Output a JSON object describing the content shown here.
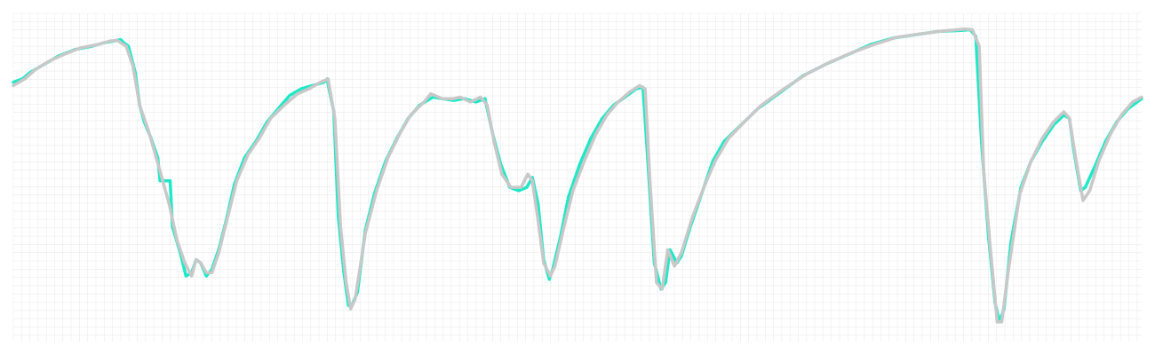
{
  "chart_data": {
    "type": "line",
    "title": "",
    "xlabel": "",
    "ylabel": "",
    "grid": true,
    "legend": "none",
    "xlim": [
      0,
      1
    ],
    "ylim": [
      0,
      1
    ],
    "colors": {
      "grid": "#ececec",
      "background": "#ffffff"
    },
    "series": [
      {
        "color": "#1de9c8",
        "points": [
          [
            0.0,
            0.79
          ],
          [
            0.008,
            0.8
          ],
          [
            0.015,
            0.82
          ],
          [
            0.03,
            0.85
          ],
          [
            0.04,
            0.87
          ],
          [
            0.055,
            0.89
          ],
          [
            0.07,
            0.9
          ],
          [
            0.08,
            0.91
          ],
          [
            0.088,
            0.915
          ],
          [
            0.095,
            0.92
          ],
          [
            0.098,
            0.91
          ],
          [
            0.102,
            0.9
          ],
          [
            0.108,
            0.82
          ],
          [
            0.112,
            0.72
          ],
          [
            0.116,
            0.67
          ],
          [
            0.122,
            0.62
          ],
          [
            0.128,
            0.56
          ],
          [
            0.13,
            0.49
          ],
          [
            0.139,
            0.49
          ],
          [
            0.141,
            0.35
          ],
          [
            0.148,
            0.27
          ],
          [
            0.153,
            0.2
          ],
          [
            0.158,
            0.21
          ],
          [
            0.162,
            0.25
          ],
          [
            0.166,
            0.24
          ],
          [
            0.171,
            0.2
          ],
          [
            0.176,
            0.22
          ],
          [
            0.182,
            0.28
          ],
          [
            0.188,
            0.36
          ],
          [
            0.196,
            0.48
          ],
          [
            0.205,
            0.56
          ],
          [
            0.215,
            0.61
          ],
          [
            0.225,
            0.67
          ],
          [
            0.235,
            0.71
          ],
          [
            0.245,
            0.75
          ],
          [
            0.255,
            0.77
          ],
          [
            0.265,
            0.78
          ],
          [
            0.275,
            0.79
          ],
          [
            0.278,
            0.8
          ],
          [
            0.284,
            0.7
          ],
          [
            0.288,
            0.38
          ],
          [
            0.293,
            0.21
          ],
          [
            0.297,
            0.11
          ],
          [
            0.3,
            0.11
          ],
          [
            0.305,
            0.15
          ],
          [
            0.312,
            0.34
          ],
          [
            0.32,
            0.45
          ],
          [
            0.33,
            0.55
          ],
          [
            0.34,
            0.62
          ],
          [
            0.35,
            0.68
          ],
          [
            0.36,
            0.72
          ],
          [
            0.372,
            0.745
          ],
          [
            0.38,
            0.74
          ],
          [
            0.39,
            0.735
          ],
          [
            0.4,
            0.74
          ],
          [
            0.41,
            0.73
          ],
          [
            0.418,
            0.74
          ],
          [
            0.425,
            0.63
          ],
          [
            0.432,
            0.54
          ],
          [
            0.44,
            0.47
          ],
          [
            0.448,
            0.46
          ],
          [
            0.455,
            0.47
          ],
          [
            0.46,
            0.5
          ],
          [
            0.465,
            0.42
          ],
          [
            0.47,
            0.25
          ],
          [
            0.475,
            0.19
          ],
          [
            0.478,
            0.22
          ],
          [
            0.485,
            0.32
          ],
          [
            0.492,
            0.44
          ],
          [
            0.502,
            0.54
          ],
          [
            0.512,
            0.62
          ],
          [
            0.522,
            0.68
          ],
          [
            0.532,
            0.72
          ],
          [
            0.542,
            0.745
          ],
          [
            0.552,
            0.77
          ],
          [
            0.558,
            0.775
          ],
          [
            0.562,
            0.57
          ],
          [
            0.568,
            0.24
          ],
          [
            0.574,
            0.16
          ],
          [
            0.578,
            0.18
          ],
          [
            0.582,
            0.28
          ],
          [
            0.588,
            0.24
          ],
          [
            0.592,
            0.26
          ],
          [
            0.6,
            0.35
          ],
          [
            0.61,
            0.45
          ],
          [
            0.62,
            0.55
          ],
          [
            0.63,
            0.61
          ],
          [
            0.645,
            0.66
          ],
          [
            0.66,
            0.71
          ],
          [
            0.68,
            0.76
          ],
          [
            0.7,
            0.81
          ],
          [
            0.72,
            0.845
          ],
          [
            0.74,
            0.875
          ],
          [
            0.76,
            0.905
          ],
          [
            0.78,
            0.925
          ],
          [
            0.8,
            0.935
          ],
          [
            0.82,
            0.945
          ],
          [
            0.84,
            0.948
          ],
          [
            0.848,
            0.95
          ],
          [
            0.853,
            0.93
          ],
          [
            0.858,
            0.61
          ],
          [
            0.864,
            0.33
          ],
          [
            0.87,
            0.12
          ],
          [
            0.874,
            0.06
          ],
          [
            0.878,
            0.1
          ],
          [
            0.884,
            0.3
          ],
          [
            0.893,
            0.47
          ],
          [
            0.902,
            0.55
          ],
          [
            0.912,
            0.61
          ],
          [
            0.922,
            0.66
          ],
          [
            0.931,
            0.69
          ],
          [
            0.936,
            0.68
          ],
          [
            0.94,
            0.58
          ],
          [
            0.946,
            0.46
          ],
          [
            0.95,
            0.47
          ],
          [
            0.958,
            0.53
          ],
          [
            0.968,
            0.61
          ],
          [
            0.978,
            0.67
          ],
          [
            0.988,
            0.71
          ],
          [
            1.0,
            0.74
          ]
        ]
      },
      {
        "color": "#c8c8c8",
        "points": [
          [
            0.0,
            0.78
          ],
          [
            0.01,
            0.8
          ],
          [
            0.02,
            0.83
          ],
          [
            0.032,
            0.855
          ],
          [
            0.045,
            0.875
          ],
          [
            0.06,
            0.895
          ],
          [
            0.075,
            0.905
          ],
          [
            0.085,
            0.915
          ],
          [
            0.092,
            0.918
          ],
          [
            0.1,
            0.9
          ],
          [
            0.106,
            0.84
          ],
          [
            0.112,
            0.72
          ],
          [
            0.12,
            0.64
          ],
          [
            0.13,
            0.52
          ],
          [
            0.138,
            0.42
          ],
          [
            0.145,
            0.31
          ],
          [
            0.152,
            0.24
          ],
          [
            0.158,
            0.2
          ],
          [
            0.162,
            0.25
          ],
          [
            0.166,
            0.24
          ],
          [
            0.171,
            0.21
          ],
          [
            0.176,
            0.21
          ],
          [
            0.182,
            0.27
          ],
          [
            0.19,
            0.38
          ],
          [
            0.198,
            0.49
          ],
          [
            0.208,
            0.57
          ],
          [
            0.218,
            0.62
          ],
          [
            0.228,
            0.68
          ],
          [
            0.24,
            0.72
          ],
          [
            0.252,
            0.755
          ],
          [
            0.262,
            0.77
          ],
          [
            0.272,
            0.79
          ],
          [
            0.279,
            0.8
          ],
          [
            0.285,
            0.68
          ],
          [
            0.29,
            0.35
          ],
          [
            0.295,
            0.18
          ],
          [
            0.299,
            0.1
          ],
          [
            0.303,
            0.13
          ],
          [
            0.312,
            0.33
          ],
          [
            0.322,
            0.46
          ],
          [
            0.332,
            0.56
          ],
          [
            0.342,
            0.63
          ],
          [
            0.352,
            0.69
          ],
          [
            0.364,
            0.73
          ],
          [
            0.37,
            0.755
          ],
          [
            0.38,
            0.74
          ],
          [
            0.39,
            0.74
          ],
          [
            0.396,
            0.745
          ],
          [
            0.405,
            0.73
          ],
          [
            0.414,
            0.745
          ],
          [
            0.42,
            0.72
          ],
          [
            0.426,
            0.61
          ],
          [
            0.433,
            0.51
          ],
          [
            0.441,
            0.47
          ],
          [
            0.45,
            0.47
          ],
          [
            0.456,
            0.51
          ],
          [
            0.46,
            0.49
          ],
          [
            0.465,
            0.37
          ],
          [
            0.47,
            0.24
          ],
          [
            0.476,
            0.2
          ],
          [
            0.48,
            0.23
          ],
          [
            0.488,
            0.35
          ],
          [
            0.496,
            0.46
          ],
          [
            0.506,
            0.55
          ],
          [
            0.516,
            0.63
          ],
          [
            0.526,
            0.69
          ],
          [
            0.536,
            0.73
          ],
          [
            0.546,
            0.76
          ],
          [
            0.555,
            0.78
          ],
          [
            0.56,
            0.77
          ],
          [
            0.564,
            0.5
          ],
          [
            0.57,
            0.18
          ],
          [
            0.575,
            0.16
          ],
          [
            0.58,
            0.28
          ],
          [
            0.586,
            0.23
          ],
          [
            0.592,
            0.27
          ],
          [
            0.602,
            0.38
          ],
          [
            0.612,
            0.47
          ],
          [
            0.622,
            0.55
          ],
          [
            0.634,
            0.62
          ],
          [
            0.648,
            0.67
          ],
          [
            0.663,
            0.72
          ],
          [
            0.683,
            0.77
          ],
          [
            0.703,
            0.815
          ],
          [
            0.723,
            0.85
          ],
          [
            0.743,
            0.88
          ],
          [
            0.763,
            0.905
          ],
          [
            0.783,
            0.927
          ],
          [
            0.803,
            0.937
          ],
          [
            0.823,
            0.946
          ],
          [
            0.843,
            0.952
          ],
          [
            0.85,
            0.95
          ],
          [
            0.856,
            0.9
          ],
          [
            0.86,
            0.52
          ],
          [
            0.866,
            0.28
          ],
          [
            0.872,
            0.06
          ],
          [
            0.876,
            0.06
          ],
          [
            0.882,
            0.22
          ],
          [
            0.892,
            0.45
          ],
          [
            0.902,
            0.55
          ],
          [
            0.912,
            0.62
          ],
          [
            0.922,
            0.67
          ],
          [
            0.931,
            0.7
          ],
          [
            0.936,
            0.68
          ],
          [
            0.942,
            0.55
          ],
          [
            0.948,
            0.43
          ],
          [
            0.954,
            0.46
          ],
          [
            0.962,
            0.55
          ],
          [
            0.972,
            0.63
          ],
          [
            0.982,
            0.69
          ],
          [
            0.992,
            0.73
          ],
          [
            1.0,
            0.745
          ]
        ]
      }
    ]
  }
}
